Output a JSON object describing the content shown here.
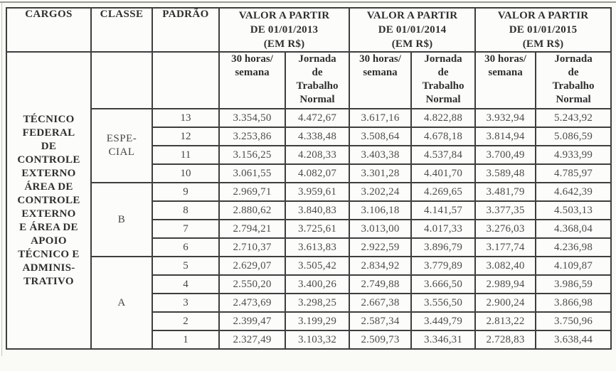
{
  "header": {
    "cargos": "CARGOS",
    "classe": "CLASSE",
    "padrao": "PADRÃO",
    "years": [
      "VALOR A PARTIR\nDE 01/01/2013\n(EM R$)",
      "VALOR A PARTIR\nDE 01/01/2014\n(EM R$)",
      "VALOR A PARTIR\nDE 01/01/2015\n(EM R$)"
    ]
  },
  "sub": {
    "hours": "30 horas/\nsemana",
    "jornada": "Jornada\nde\nTrabalho\nNormal"
  },
  "cargo": {
    "text": "TÉCNICO\nFEDERAL\nDE\nCONTROLE\nEXTERNO\nÁREA DE\nCONTROLE\nEXTERNO\nE ÁREA DE\nAPOIO\nTÉCNICO E\nADMINIS-\nTRATIVO"
  },
  "classes": [
    {
      "label": "ESPE-\nCIAL",
      "span": 4,
      "start": 0
    },
    {
      "label": "B",
      "span": 4,
      "start": 4
    },
    {
      "label": "A",
      "span": 5,
      "start": 8
    }
  ],
  "rows": [
    {
      "padrao": "13",
      "values": [
        "3.354,50",
        "4.472,67",
        "3.617,16",
        "4.822,88",
        "3.932,94",
        "5.243,92"
      ]
    },
    {
      "padrao": "12",
      "values": [
        "3.253,86",
        "4.338,48",
        "3.508,64",
        "4.678,18",
        "3.814,94",
        "5.086,59"
      ]
    },
    {
      "padrao": "11",
      "values": [
        "3.156,25",
        "4.208,33",
        "3.403,38",
        "4.537,84",
        "3.700,49",
        "4.933,99"
      ]
    },
    {
      "padrao": "10",
      "values": [
        "3.061,55",
        "4.082,07",
        "3.301,28",
        "4.401,70",
        "3.589,48",
        "4.785,97"
      ]
    },
    {
      "padrao": "9",
      "values": [
        "2.969,71",
        "3.959,61",
        "3.202,24",
        "4.269,65",
        "3.481,79",
        "4.642,39"
      ]
    },
    {
      "padrao": "8",
      "values": [
        "2.880,62",
        "3.840,83",
        "3.106,18",
        "4.141,57",
        "3.377,35",
        "4.503,13"
      ]
    },
    {
      "padrao": "7",
      "values": [
        "2.794,21",
        "3.725,61",
        "3.013,00",
        "4.017,33",
        "3.276,03",
        "4.368,04"
      ]
    },
    {
      "padrao": "6",
      "values": [
        "2.710,37",
        "3.613,83",
        "2.922,59",
        "3.896,79",
        "3.177,74",
        "4.236,98"
      ]
    },
    {
      "padrao": "5",
      "values": [
        "2.629,07",
        "3.505,42",
        "2.834,92",
        "3.779,89",
        "3.082,40",
        "4.109,87"
      ]
    },
    {
      "padrao": "4",
      "values": [
        "2.550,20",
        "3.400,26",
        "2.749,88",
        "3.666,50",
        "2.989,94",
        "3.986,59"
      ]
    },
    {
      "padrao": "3",
      "values": [
        "2.473,69",
        "3.298,25",
        "2.667,38",
        "3.556,50",
        "2.900,24",
        "3.866,98"
      ]
    },
    {
      "padrao": "2",
      "values": [
        "2.399,47",
        "3.199,29",
        "2.587,34",
        "3.449,79",
        "2.813,22",
        "3.750,96"
      ]
    },
    {
      "padrao": "1",
      "values": [
        "2.327,49",
        "3.103,32",
        "2.509,73",
        "3.346,31",
        "2.728,83",
        "3.638,44"
      ]
    }
  ]
}
